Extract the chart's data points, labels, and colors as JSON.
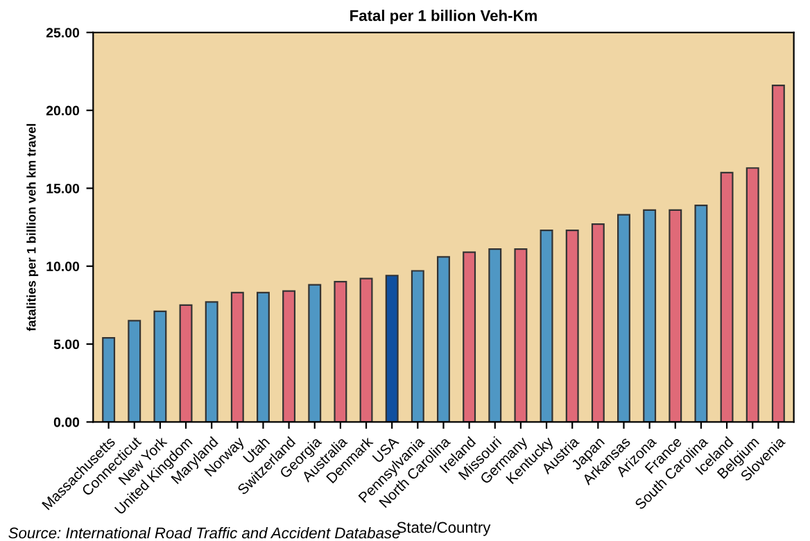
{
  "chart_data": {
    "type": "bar",
    "title": "Fatal per 1 billion Veh-Km",
    "xlabel": "State/Country",
    "ylabel": "fatalities per 1 billion veh km travel",
    "categories": [
      "Massachusetts",
      "Connecticut",
      "New York",
      "United Kingdom",
      "Maryland",
      "Norway",
      "Utah",
      "Switzerland",
      "Georgia",
      "Australia",
      "Denmark",
      "USA",
      "Pennsylvania",
      "North Carolina",
      "Ireland",
      "Missouri",
      "Germany",
      "Kentucky",
      "Austria",
      "Japan",
      "Arkansas",
      "Arizona",
      "France",
      "South Carolina",
      "Iceland",
      "Belgium",
      "Slovenia"
    ],
    "values": [
      5.4,
      6.5,
      7.1,
      7.5,
      7.7,
      8.3,
      8.3,
      8.4,
      8.8,
      9.0,
      9.2,
      9.4,
      9.7,
      10.6,
      10.9,
      11.1,
      11.1,
      12.3,
      12.3,
      12.7,
      13.3,
      13.6,
      13.6,
      13.9,
      16.0,
      16.3,
      21.6
    ],
    "colors": [
      "#4f97c4",
      "#4f97c4",
      "#4f97c4",
      "#e06a78",
      "#4f97c4",
      "#e06a78",
      "#4f97c4",
      "#e06a78",
      "#4f97c4",
      "#e06a78",
      "#e06a78",
      "#1050a0",
      "#4f97c4",
      "#4f97c4",
      "#e06a78",
      "#4f97c4",
      "#e06a78",
      "#4f97c4",
      "#e06a78",
      "#e06a78",
      "#4f97c4",
      "#4f97c4",
      "#e06a78",
      "#4f97c4",
      "#e06a78",
      "#e06a78",
      "#e06a78"
    ],
    "ylim": [
      0,
      25
    ],
    "yticks": [
      {
        "value": 0,
        "label": "0.00"
      },
      {
        "value": 5,
        "label": "5.00"
      },
      {
        "value": 10,
        "label": "10.00"
      },
      {
        "value": 15,
        "label": "15.00"
      },
      {
        "value": 20,
        "label": "20.00"
      },
      {
        "value": 25,
        "label": "25.00"
      }
    ],
    "grid": false,
    "legend": false,
    "annotations": [
      "Source: International Road Traffic and Accident Database"
    ]
  }
}
